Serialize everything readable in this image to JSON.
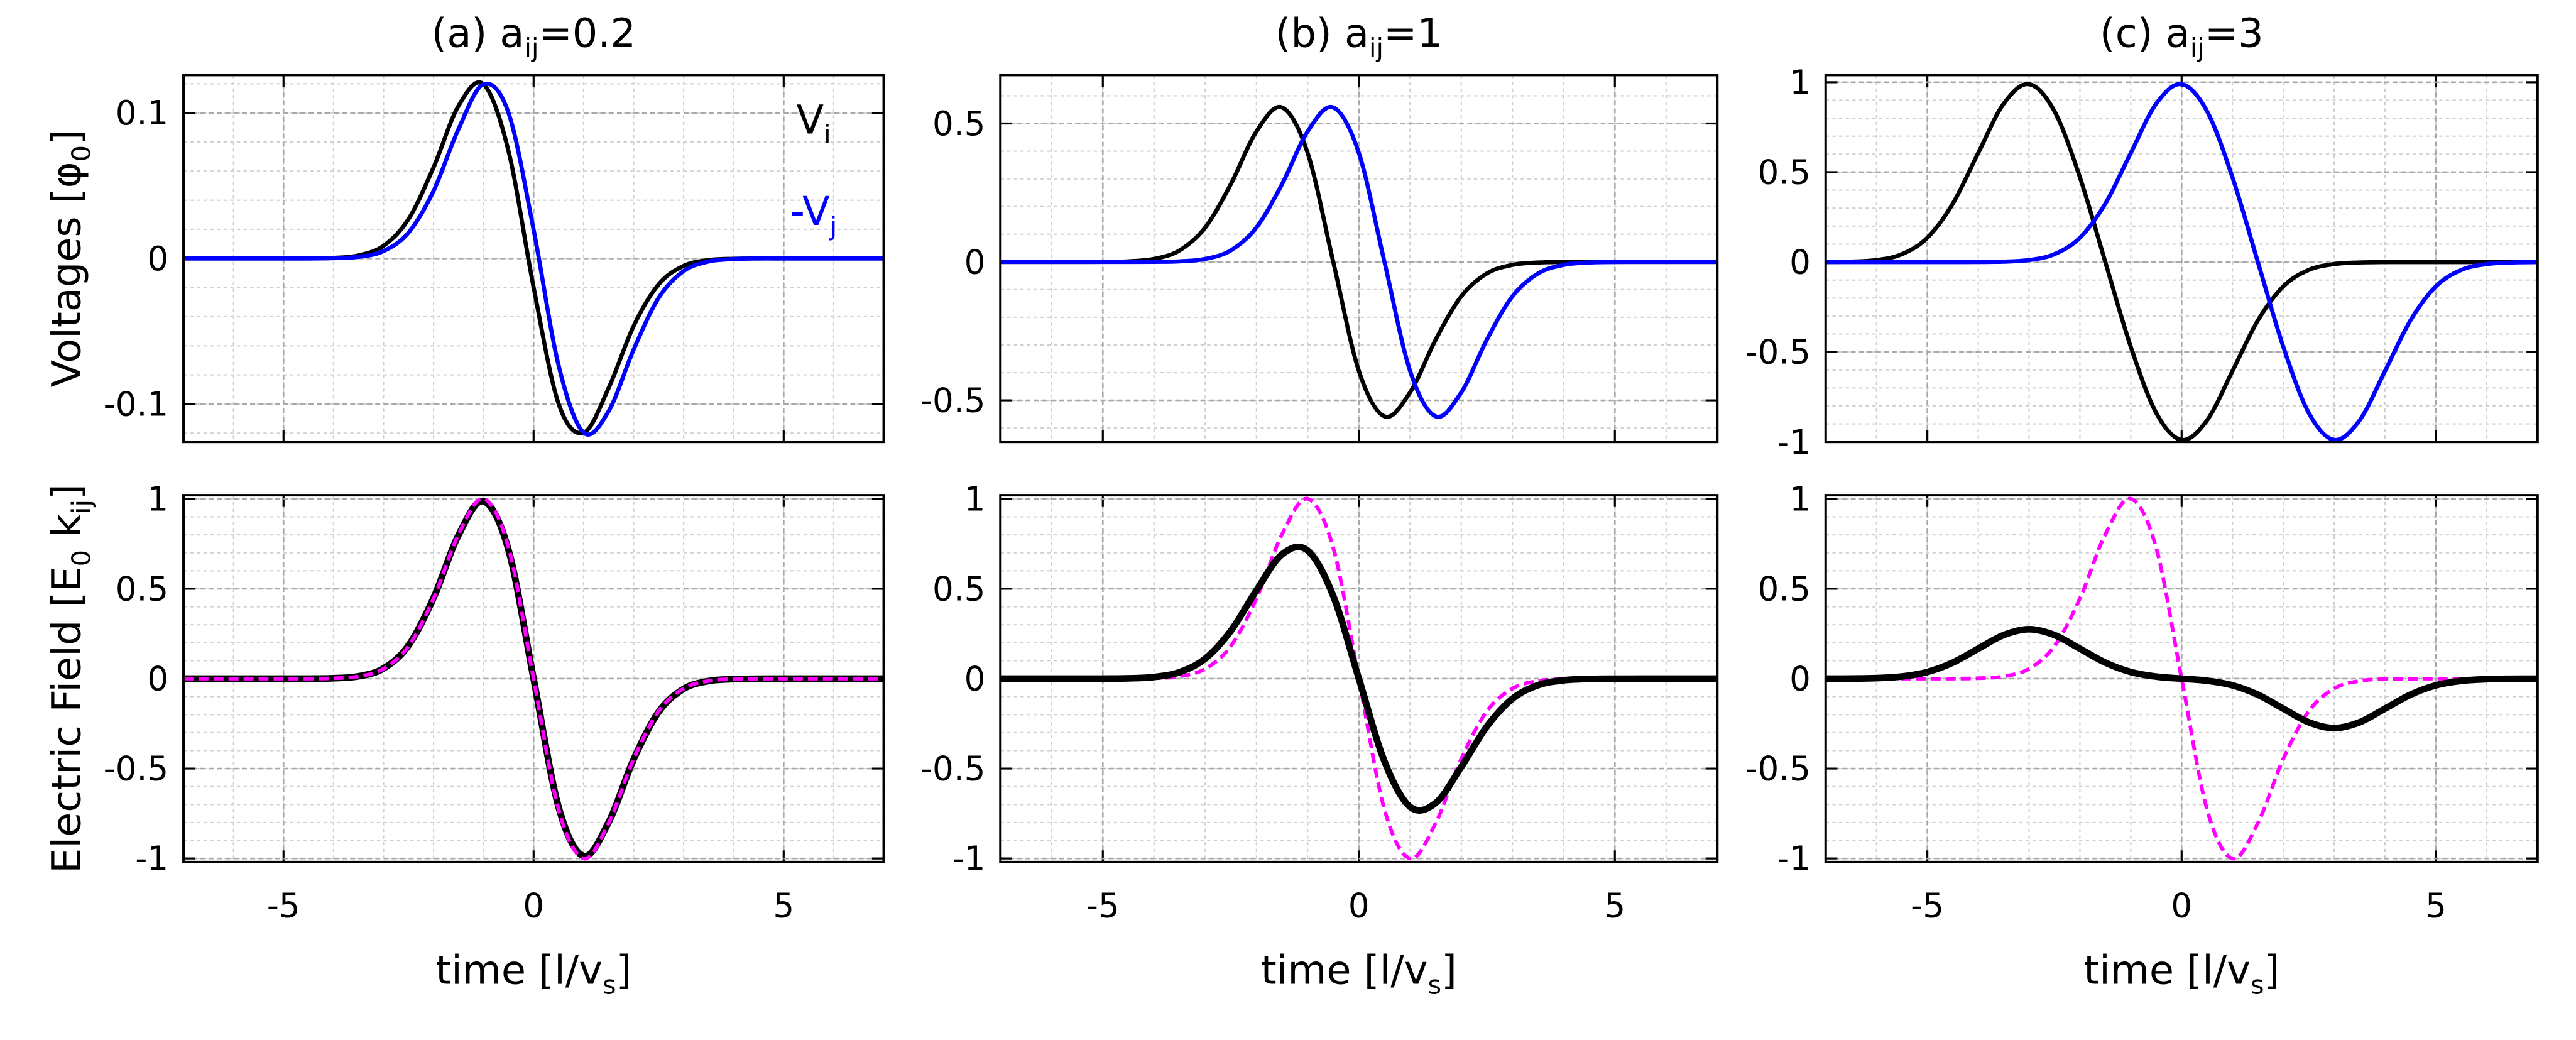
{
  "chart_data": [
    {
      "type": "line",
      "title": [
        "(a)  a",
        "ij",
        "=0.2"
      ],
      "ylabel": [
        "Voltages  [φ",
        "0",
        "]"
      ],
      "x": [
        -7,
        -6.5,
        -6,
        -5.5,
        -5,
        -4.5,
        -4,
        -3.5,
        -3,
        -2.5,
        -2,
        -1.5,
        -1,
        -0.5,
        0,
        0.5,
        1,
        1.5,
        2,
        2.5,
        3,
        3.5,
        4,
        4.5,
        5,
        5.5,
        6,
        6.5,
        7
      ],
      "xlim": [
        -7,
        7
      ],
      "xticks": [
        -5,
        0,
        5
      ],
      "xticklabels": false,
      "ylim": [
        -0.126,
        0.126
      ],
      "yticks": [
        -0.1,
        0,
        0.1
      ],
      "grid": true,
      "minor_divisions": 5,
      "legend": "upper right",
      "series": [
        {
          "name": [
            "V",
            "i"
          ],
          "color": "#000000",
          "width": 2.5,
          "dash": false,
          "values": [
            0,
            0,
            0,
            0,
            0,
            0,
            0.0004,
            0.0021,
            0.0087,
            0.0271,
            0.0626,
            0.1049,
            0.1196,
            0.0735,
            -0.0198,
            -0.0998,
            -0.1197,
            -0.089,
            -0.0464,
            -0.0178,
            -0.0051,
            -0.0011,
            -0.0002,
            0,
            0,
            0,
            0,
            0,
            0
          ]
        },
        {
          "name": [
            "-V",
            "j"
          ],
          "color": "#0000ff",
          "width": 2.5,
          "dash": false,
          "values": [
            0,
            0,
            0,
            0,
            0,
            0,
            0.0002,
            0.0011,
            0.0051,
            0.0178,
            0.0464,
            0.089,
            0.1197,
            0.0998,
            0.0198,
            -0.0735,
            -0.1196,
            -0.1049,
            -0.0626,
            -0.0271,
            -0.0087,
            -0.0021,
            -0.0004,
            0,
            0,
            0,
            0,
            0,
            0
          ]
        }
      ]
    },
    {
      "type": "line",
      "title": [
        "(b)  a",
        "ij",
        "=1"
      ],
      "x": [
        -7,
        -6.5,
        -6,
        -5.5,
        -5,
        -4.5,
        -4,
        -3.5,
        -3,
        -2.5,
        -2,
        -1.5,
        -1,
        -0.5,
        0,
        0.5,
        1,
        1.5,
        2,
        2.5,
        3,
        3.5,
        4,
        4.5,
        5,
        5.5,
        6,
        6.5,
        7
      ],
      "xlim": [
        -7,
        7
      ],
      "xticks": [
        -5,
        0,
        5
      ],
      "xticklabels": false,
      "ylim": [
        -0.65,
        0.675
      ],
      "yticks": [
        -0.5,
        0,
        0.5
      ],
      "grid": true,
      "minor_divisions": 5,
      "series": [
        {
          "color": "#000000",
          "width": 2.5,
          "dash": false,
          "values": [
            0,
            0,
            0,
            0,
            0.0003,
            0.0021,
            0.0108,
            0.0417,
            0.1242,
            0.2808,
            0.4712,
            0.5578,
            0.3935,
            0,
            -0.3935,
            -0.5578,
            -0.4712,
            -0.2808,
            -0.1242,
            -0.0417,
            -0.0108,
            -0.0021,
            -0.0003,
            0,
            0,
            0,
            0,
            0,
            0
          ]
        },
        {
          "color": "#0000ff",
          "width": 2.5,
          "dash": false,
          "values": [
            0,
            0,
            0,
            0,
            0,
            0,
            0.0003,
            0.0021,
            0.0108,
            0.0417,
            0.1242,
            0.2808,
            0.4712,
            0.5578,
            0.3935,
            0,
            -0.3935,
            -0.5578,
            -0.4712,
            -0.2808,
            -0.1242,
            -0.0417,
            -0.0108,
            -0.0021,
            -0.0003,
            0,
            0,
            0,
            0
          ]
        }
      ]
    },
    {
      "type": "line",
      "title": [
        "(c)  a",
        "ij",
        "=3"
      ],
      "x": [
        -7,
        -6.5,
        -6,
        -5.5,
        -5,
        -4.5,
        -4,
        -3.5,
        -3,
        -2.5,
        -2,
        -1.5,
        -1,
        -0.5,
        0,
        0.5,
        1,
        1.5,
        2,
        2.5,
        3,
        3.5,
        4,
        4.5,
        5,
        5.5,
        6,
        6.5,
        7
      ],
      "xlim": [
        -7,
        7
      ],
      "xticks": [
        -5,
        0,
        5
      ],
      "xticklabels": false,
      "ylim": [
        -1,
        1.04
      ],
      "yticks": [
        -1,
        -0.5,
        0,
        0.5,
        1
      ],
      "grid": true,
      "minor_divisions": 5,
      "series": [
        {
          "color": "#000000",
          "width": 2.5,
          "dash": false,
          "values": [
            0.0003,
            0.0022,
            0.0111,
            0.0439,
            0.1353,
            0.3247,
            0.6062,
            0.8803,
            0.9889,
            0.8386,
            0.4712,
            0,
            -0.4712,
            -0.8386,
            -0.9889,
            -0.8803,
            -0.6062,
            -0.3247,
            -0.1353,
            -0.0439,
            -0.0111,
            -0.0022,
            -0.0003,
            0,
            0,
            0,
            0,
            0,
            0
          ]
        },
        {
          "color": "#0000ff",
          "width": 2.5,
          "dash": false,
          "values": [
            0,
            0,
            0,
            0,
            0,
            0,
            0.0003,
            0.0022,
            0.0111,
            0.0439,
            0.1353,
            0.3247,
            0.6062,
            0.8803,
            0.9889,
            0.8386,
            0.4712,
            0,
            -0.4712,
            -0.8386,
            -0.9889,
            -0.8803,
            -0.6062,
            -0.3247,
            -0.1353,
            -0.0439,
            -0.0111,
            -0.0022,
            -0.0003
          ]
        }
      ]
    },
    {
      "type": "line",
      "ylabel": [
        "Electric Field  [E",
        "0",
        " k",
        "ij",
        "]"
      ],
      "xlabel": [
        "time [l/v",
        "s",
        "]"
      ],
      "x": [
        -7,
        -6.5,
        -6,
        -5.5,
        -5,
        -4.5,
        -4,
        -3.5,
        -3,
        -2.5,
        -2,
        -1.5,
        -1,
        -0.5,
        0,
        0.5,
        1,
        1.5,
        2,
        2.5,
        3,
        3.5,
        4,
        4.5,
        5,
        5.5,
        6,
        6.5,
        7
      ],
      "xlim": [
        -7,
        7
      ],
      "xticks": [
        -5,
        0,
        5
      ],
      "xticklabels": true,
      "ylim": [
        -1.02,
        1.02
      ],
      "yticks": [
        -1,
        -0.5,
        0,
        0.5,
        1
      ],
      "grid": true,
      "minor_divisions": 5,
      "series": [
        {
          "color": "#000000",
          "width": 4,
          "dash": false,
          "values": [
            0,
            0,
            0,
            0,
            0,
            0.0003,
            0.0025,
            0.0132,
            0.0569,
            0.185,
            0.449,
            0.799,
            0.986,
            0.714,
            0,
            -0.714,
            -0.986,
            -0.799,
            -0.449,
            -0.185,
            -0.0569,
            -0.0132,
            -0.0025,
            -0.0003,
            0,
            0,
            0,
            0,
            0
          ]
        },
        {
          "color": "#ff00ff",
          "width": 2.2,
          "dash": true,
          "values": [
            0,
            0,
            0,
            0,
            0,
            0.0003,
            0.0022,
            0.0126,
            0.0549,
            0.181,
            0.446,
            0.803,
            1,
            0.7275,
            0,
            -0.7275,
            -1,
            -0.803,
            -0.446,
            -0.181,
            -0.0549,
            -0.0126,
            -0.0022,
            -0.0003,
            0,
            0,
            0,
            0,
            0
          ]
        }
      ]
    },
    {
      "type": "line",
      "xlabel": [
        "time [l/v",
        "s",
        "]"
      ],
      "x": [
        -7,
        -6.5,
        -6,
        -5.5,
        -5,
        -4.5,
        -4,
        -3.5,
        -3,
        -2.5,
        -2,
        -1.5,
        -1,
        -0.5,
        0,
        0.5,
        1,
        1.5,
        2,
        2.5,
        3,
        3.5,
        4,
        4.5,
        5,
        5.5,
        6,
        6.5,
        7
      ],
      "xlim": [
        -7,
        7
      ],
      "xticks": [
        -5,
        0,
        5
      ],
      "xticklabels": true,
      "ylim": [
        -1.02,
        1.02
      ],
      "yticks": [
        -1,
        -0.5,
        0,
        0.5,
        1
      ],
      "grid": true,
      "minor_divisions": 5,
      "series": [
        {
          "color": "#ff00ff",
          "width": 2.2,
          "dash": true,
          "values": [
            0,
            0,
            0,
            0,
            0,
            0.0003,
            0.0022,
            0.0126,
            0.0549,
            0.181,
            0.446,
            0.803,
            1,
            0.7275,
            0,
            -0.7275,
            -1,
            -0.803,
            -0.446,
            -0.181,
            -0.0549,
            -0.0126,
            -0.0022,
            -0.0003,
            0,
            0,
            0,
            0,
            0
          ]
        },
        {
          "color": "#000000",
          "width": 4,
          "dash": false,
          "values": [
            0,
            0,
            0,
            0,
            0.0003,
            0.0018,
            0.0091,
            0.0362,
            0.1113,
            0.2659,
            0.4909,
            0.6913,
            0.7129,
            0.4598,
            0,
            -0.4598,
            -0.7129,
            -0.6913,
            -0.4909,
            -0.2659,
            -0.1113,
            -0.0362,
            -0.0091,
            -0.0018,
            -0.0003,
            0,
            0,
            0,
            0
          ]
        }
      ]
    },
    {
      "type": "line",
      "xlabel": [
        "time [l/v",
        "s",
        "]"
      ],
      "x": [
        -7,
        -6.5,
        -6,
        -5.5,
        -5,
        -4.5,
        -4,
        -3.5,
        -3,
        -2.5,
        -2,
        -1.5,
        -1,
        -0.5,
        0,
        0.5,
        1,
        1.5,
        2,
        2.5,
        3,
        3.5,
        4,
        4.5,
        5,
        5.5,
        6,
        6.5,
        7
      ],
      "xlim": [
        -7,
        7
      ],
      "xticks": [
        -5,
        0,
        5
      ],
      "xticklabels": true,
      "ylim": [
        -1.02,
        1.02
      ],
      "yticks": [
        -1,
        -0.5,
        0,
        0.5,
        1
      ],
      "grid": true,
      "minor_divisions": 5,
      "series": [
        {
          "color": "#ff00ff",
          "width": 2.2,
          "dash": true,
          "values": [
            0,
            0,
            0,
            0,
            0,
            0.0003,
            0.0022,
            0.0126,
            0.0549,
            0.181,
            0.446,
            0.803,
            1,
            0.7275,
            0,
            -0.7275,
            -1,
            -0.803,
            -0.446,
            -0.181,
            -0.0549,
            -0.0126,
            -0.0022,
            -0.0003,
            0,
            0,
            0,
            0,
            0
          ]
        },
        {
          "color": "#000000",
          "width": 4,
          "dash": false,
          "values": [
            0.0001,
            0.0006,
            0.0031,
            0.0121,
            0.0372,
            0.0892,
            0.1667,
            0.2425,
            0.2748,
            0.2425,
            0.1667,
            0.0892,
            0.0371,
            0.0115,
            0,
            -0.0115,
            -0.0371,
            -0.0892,
            -0.1667,
            -0.2425,
            -0.2748,
            -0.2425,
            -0.1667,
            -0.0892,
            -0.0372,
            -0.0121,
            -0.0031,
            -0.0006,
            -0.0001
          ]
        }
      ]
    }
  ]
}
